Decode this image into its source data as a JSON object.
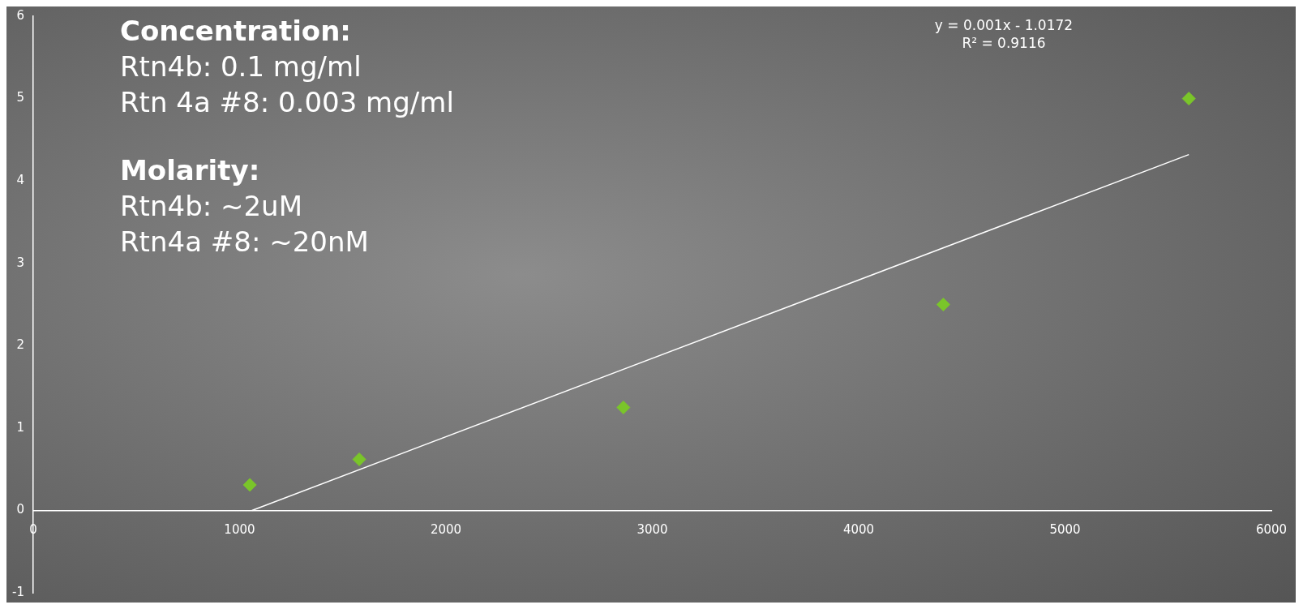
{
  "chart_data": {
    "type": "scatter",
    "marker": "diamond",
    "grid": false,
    "legend": false,
    "xlim": [
      0,
      6000
    ],
    "xticks": [
      0,
      1000,
      2000,
      3000,
      4000,
      5000,
      6000
    ],
    "ylim": [
      -1,
      6
    ],
    "yticks": [
      -1,
      0,
      1,
      2,
      3,
      4,
      5,
      6
    ],
    "series": [
      {
        "type": "scatter",
        "color": "#7ac52a",
        "x": [
          1050,
          1580,
          2860,
          4410,
          5600
        ],
        "values": [
          0.31,
          0.62,
          1.25,
          2.5,
          5
        ]
      },
      {
        "type": "line",
        "color": "#ffffff",
        "marker": "none",
        "x": [
          1060,
          5600
        ],
        "values": [
          0,
          4.32
        ]
      }
    ],
    "annotations": [
      "Concentration:",
      "Rtn4b: 0.1 mg/ml",
      "Rtn 4a #8: 0.003 mg/ml",
      "Molarity:",
      "Rtn4b: ~2uM",
      "Rtn4a #8: ~20nM",
      "y = 0.001x - 1.0172",
      "R² = 0.9116"
    ]
  }
}
